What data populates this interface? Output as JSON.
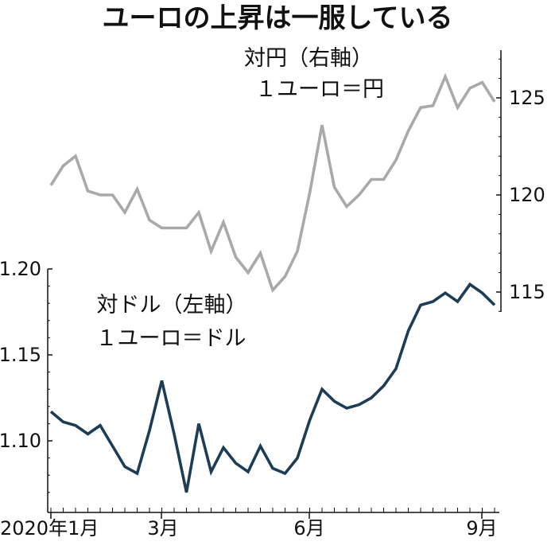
{
  "chart_data": {
    "type": "line",
    "title": "ユーロの上昇は一服している",
    "x_ticks": [
      "2020年1月",
      "3月",
      "6月",
      "9月"
    ],
    "y_left": {
      "ticks": [
        "1.10",
        "1.15",
        "1.20"
      ],
      "range": [
        1.06,
        1.2
      ]
    },
    "y_right": {
      "ticks": [
        "115",
        "120",
        "125"
      ],
      "range": [
        114,
        127
      ]
    },
    "series": [
      {
        "name": "対円（右軸）",
        "subtitle": "１ユーロ＝円",
        "axis": "right",
        "color": "#a9a9a9",
        "values": [
          120.5,
          121.5,
          122.0,
          120.2,
          120.0,
          120.0,
          119.1,
          120.3,
          118.7,
          118.3,
          118.3,
          118.3,
          119.1,
          117.1,
          118.6,
          116.8,
          116.0,
          117.0,
          115.1,
          115.8,
          117.1,
          120.1,
          123.6,
          120.4,
          119.4,
          120.0,
          120.8,
          120.8,
          121.8,
          123.3,
          124.5,
          124.6,
          126.1,
          124.5,
          125.5,
          125.8,
          124.8
        ],
        "show_name": true
      },
      {
        "name": "対ドル（左軸）",
        "subtitle": "１ユーロ＝ドル",
        "axis": "left",
        "color": "#1d3d57",
        "values": [
          1.117,
          1.111,
          1.109,
          1.104,
          1.109,
          1.097,
          1.085,
          1.081,
          1.106,
          1.135,
          1.104,
          1.07,
          1.11,
          1.082,
          1.096,
          1.087,
          1.082,
          1.097,
          1.084,
          1.081,
          1.09,
          1.112,
          1.13,
          1.123,
          1.119,
          1.121,
          1.125,
          1.132,
          1.142,
          1.164,
          1.179,
          1.181,
          1.186,
          1.181,
          1.191,
          1.186,
          1.179
        ],
        "show_name": true
      }
    ]
  }
}
